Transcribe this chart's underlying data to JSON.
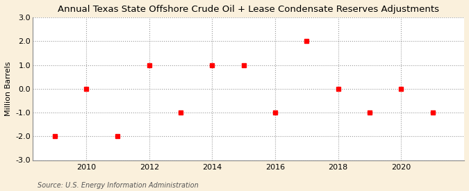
{
  "title": "Annual Texas State Offshore Crude Oil + Lease Condensate Reserves Adjustments",
  "ylabel": "Million Barrels",
  "source": "Source: U.S. Energy Information Administration",
  "years": [
    2009,
    2010,
    2011,
    2012,
    2013,
    2014,
    2015,
    2016,
    2017,
    2018,
    2019,
    2020,
    2021
  ],
  "values": [
    -2.0,
    0.0,
    -2.0,
    1.0,
    -1.0,
    1.0,
    1.0,
    -1.0,
    2.0,
    0.0,
    -1.0,
    0.0,
    -1.0
  ],
  "ylim": [
    -3.0,
    3.0
  ],
  "yticks": [
    -3.0,
    -2.0,
    -1.0,
    0.0,
    1.0,
    2.0,
    3.0
  ],
  "xticks": [
    2010,
    2012,
    2014,
    2016,
    2018,
    2020
  ],
  "xlim": [
    2008.3,
    2022.0
  ],
  "marker_color": "#FF0000",
  "marker": "s",
  "marker_size": 4,
  "bg_color": "#FAF0DC",
  "plot_bg_color": "#FFFFFF",
  "grid_color": "#999999",
  "title_fontsize": 9.5,
  "label_fontsize": 8,
  "tick_fontsize": 8,
  "source_fontsize": 7
}
